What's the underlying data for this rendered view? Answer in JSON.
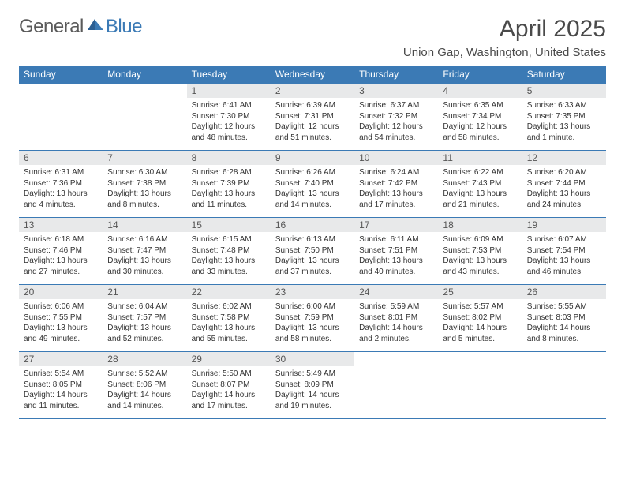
{
  "logo": {
    "general": "General",
    "blue": "Blue"
  },
  "title": "April 2025",
  "subtitle": "Union Gap, Washington, United States",
  "daysOfWeek": [
    "Sunday",
    "Monday",
    "Tuesday",
    "Wednesday",
    "Thursday",
    "Friday",
    "Saturday"
  ],
  "colors": {
    "headerBg": "#3b7ab5",
    "headerText": "#ffffff",
    "daynumBg": "#e8e9ea",
    "border": "#3b7ab5",
    "text": "#333333"
  },
  "startWeekday": 2,
  "days": [
    {
      "num": "1",
      "sunrise": "6:41 AM",
      "sunset": "7:30 PM",
      "daylight": "12 hours and 48 minutes."
    },
    {
      "num": "2",
      "sunrise": "6:39 AM",
      "sunset": "7:31 PM",
      "daylight": "12 hours and 51 minutes."
    },
    {
      "num": "3",
      "sunrise": "6:37 AM",
      "sunset": "7:32 PM",
      "daylight": "12 hours and 54 minutes."
    },
    {
      "num": "4",
      "sunrise": "6:35 AM",
      "sunset": "7:34 PM",
      "daylight": "12 hours and 58 minutes."
    },
    {
      "num": "5",
      "sunrise": "6:33 AM",
      "sunset": "7:35 PM",
      "daylight": "13 hours and 1 minute."
    },
    {
      "num": "6",
      "sunrise": "6:31 AM",
      "sunset": "7:36 PM",
      "daylight": "13 hours and 4 minutes."
    },
    {
      "num": "7",
      "sunrise": "6:30 AM",
      "sunset": "7:38 PM",
      "daylight": "13 hours and 8 minutes."
    },
    {
      "num": "8",
      "sunrise": "6:28 AM",
      "sunset": "7:39 PM",
      "daylight": "13 hours and 11 minutes."
    },
    {
      "num": "9",
      "sunrise": "6:26 AM",
      "sunset": "7:40 PM",
      "daylight": "13 hours and 14 minutes."
    },
    {
      "num": "10",
      "sunrise": "6:24 AM",
      "sunset": "7:42 PM",
      "daylight": "13 hours and 17 minutes."
    },
    {
      "num": "11",
      "sunrise": "6:22 AM",
      "sunset": "7:43 PM",
      "daylight": "13 hours and 21 minutes."
    },
    {
      "num": "12",
      "sunrise": "6:20 AM",
      "sunset": "7:44 PM",
      "daylight": "13 hours and 24 minutes."
    },
    {
      "num": "13",
      "sunrise": "6:18 AM",
      "sunset": "7:46 PM",
      "daylight": "13 hours and 27 minutes."
    },
    {
      "num": "14",
      "sunrise": "6:16 AM",
      "sunset": "7:47 PM",
      "daylight": "13 hours and 30 minutes."
    },
    {
      "num": "15",
      "sunrise": "6:15 AM",
      "sunset": "7:48 PM",
      "daylight": "13 hours and 33 minutes."
    },
    {
      "num": "16",
      "sunrise": "6:13 AM",
      "sunset": "7:50 PM",
      "daylight": "13 hours and 37 minutes."
    },
    {
      "num": "17",
      "sunrise": "6:11 AM",
      "sunset": "7:51 PM",
      "daylight": "13 hours and 40 minutes."
    },
    {
      "num": "18",
      "sunrise": "6:09 AM",
      "sunset": "7:53 PM",
      "daylight": "13 hours and 43 minutes."
    },
    {
      "num": "19",
      "sunrise": "6:07 AM",
      "sunset": "7:54 PM",
      "daylight": "13 hours and 46 minutes."
    },
    {
      "num": "20",
      "sunrise": "6:06 AM",
      "sunset": "7:55 PM",
      "daylight": "13 hours and 49 minutes."
    },
    {
      "num": "21",
      "sunrise": "6:04 AM",
      "sunset": "7:57 PM",
      "daylight": "13 hours and 52 minutes."
    },
    {
      "num": "22",
      "sunrise": "6:02 AM",
      "sunset": "7:58 PM",
      "daylight": "13 hours and 55 minutes."
    },
    {
      "num": "23",
      "sunrise": "6:00 AM",
      "sunset": "7:59 PM",
      "daylight": "13 hours and 58 minutes."
    },
    {
      "num": "24",
      "sunrise": "5:59 AM",
      "sunset": "8:01 PM",
      "daylight": "14 hours and 2 minutes."
    },
    {
      "num": "25",
      "sunrise": "5:57 AM",
      "sunset": "8:02 PM",
      "daylight": "14 hours and 5 minutes."
    },
    {
      "num": "26",
      "sunrise": "5:55 AM",
      "sunset": "8:03 PM",
      "daylight": "14 hours and 8 minutes."
    },
    {
      "num": "27",
      "sunrise": "5:54 AM",
      "sunset": "8:05 PM",
      "daylight": "14 hours and 11 minutes."
    },
    {
      "num": "28",
      "sunrise": "5:52 AM",
      "sunset": "8:06 PM",
      "daylight": "14 hours and 14 minutes."
    },
    {
      "num": "29",
      "sunrise": "5:50 AM",
      "sunset": "8:07 PM",
      "daylight": "14 hours and 17 minutes."
    },
    {
      "num": "30",
      "sunrise": "5:49 AM",
      "sunset": "8:09 PM",
      "daylight": "14 hours and 19 minutes."
    }
  ]
}
